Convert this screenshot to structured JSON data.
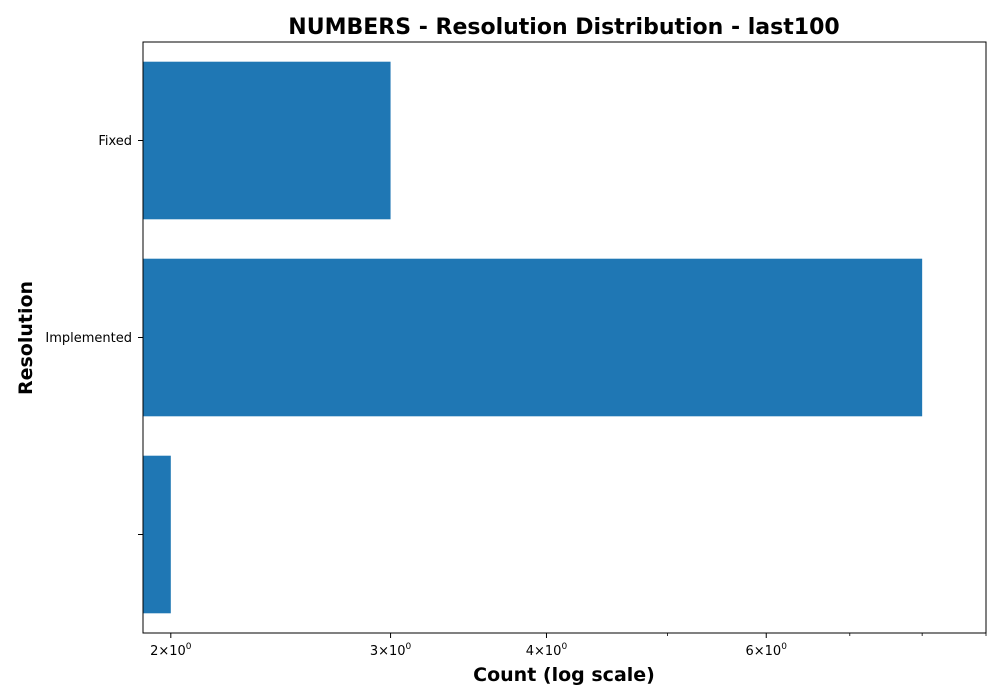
{
  "chart_data": {
    "type": "bar",
    "orientation": "horizontal",
    "title": "NUMBERS - Resolution Distribution - last100",
    "xlabel": "Count (log scale)",
    "ylabel": "Resolution",
    "x_scale": "log",
    "xlim": [
      1.9,
      9.0
    ],
    "categories": [
      "Fixed",
      "Implemented",
      ""
    ],
    "values": [
      3,
      8,
      2
    ],
    "bar_color": "#1f77b4",
    "x_ticks": [
      {
        "value": 2,
        "base": "2×10",
        "exp": "0"
      },
      {
        "value": 3,
        "base": "3×10",
        "exp": "0"
      },
      {
        "value": 4,
        "base": "4×10",
        "exp": "0"
      },
      {
        "value": 6,
        "base": "6×10",
        "exp": "0"
      }
    ],
    "x_minor_ticks": [
      5,
      7,
      8,
      9
    ],
    "grid": false
  }
}
